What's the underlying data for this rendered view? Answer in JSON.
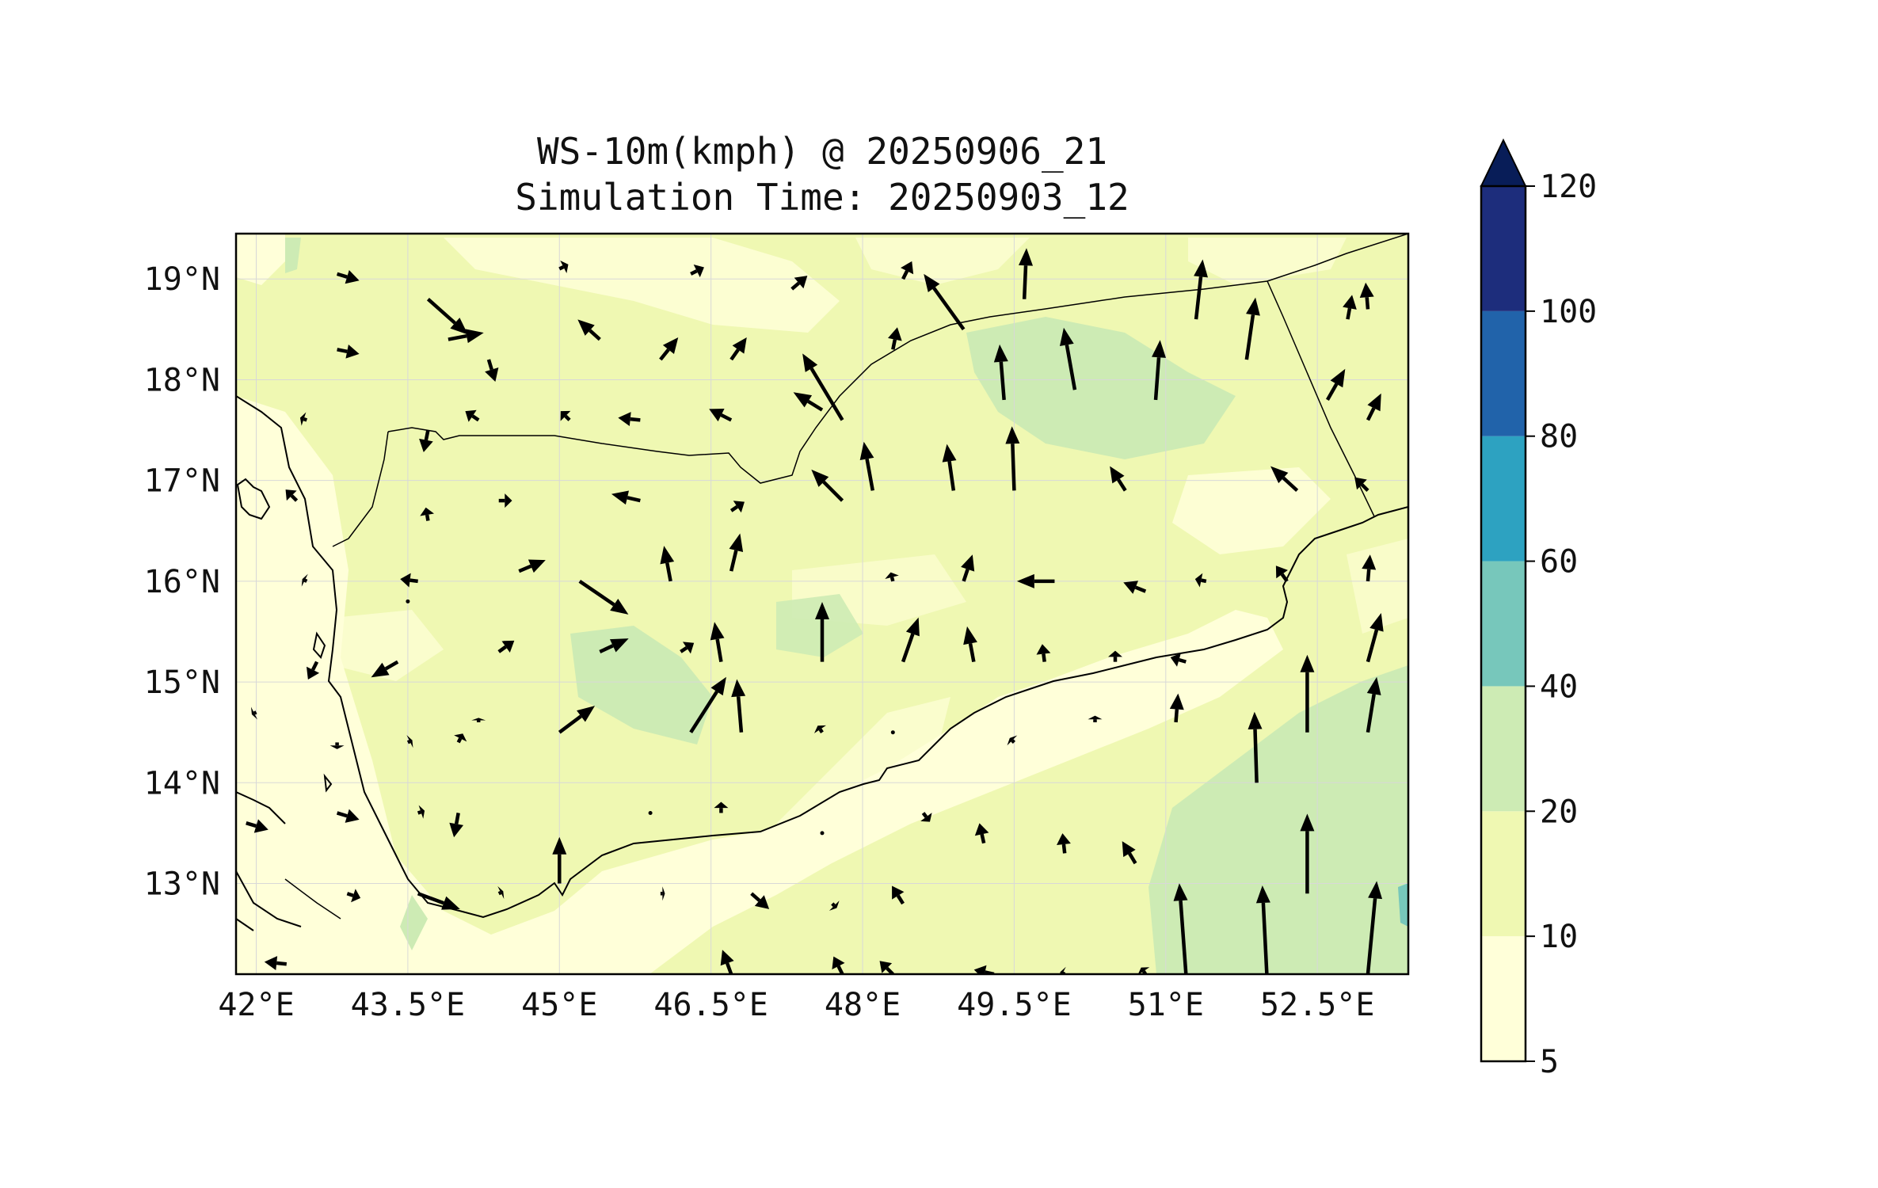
{
  "title": {
    "line1": "WS-10m(kmph) @ 20250906_21",
    "line2": "Simulation Time: 20250903_12"
  },
  "map": {
    "lon_range": [
      41.8,
      53.4
    ],
    "lat_range": [
      12.1,
      19.45
    ],
    "lon_ticks": [
      {
        "value": 42.0,
        "label": "42°E"
      },
      {
        "value": 43.5,
        "label": "43.5°E"
      },
      {
        "value": 45.0,
        "label": "45°E"
      },
      {
        "value": 46.5,
        "label": "46.5°E"
      },
      {
        "value": 48.0,
        "label": "48°E"
      },
      {
        "value": 49.5,
        "label": "49.5°E"
      },
      {
        "value": 51.0,
        "label": "51°E"
      },
      {
        "value": 52.5,
        "label": "52.5°E"
      }
    ],
    "lat_ticks": [
      {
        "value": 19,
        "label": "19°N"
      },
      {
        "value": 18,
        "label": "18°N"
      },
      {
        "value": 17,
        "label": "17°N"
      },
      {
        "value": 16,
        "label": "16°N"
      },
      {
        "value": 15,
        "label": "15°N"
      },
      {
        "value": 14,
        "label": "14°N"
      },
      {
        "value": 13,
        "label": "13°N"
      }
    ],
    "gridlines": true,
    "colors": {
      "border": "#000000",
      "grid": "#d8d8d8",
      "arrow": "#000000"
    }
  },
  "colorbar": {
    "levels": [
      {
        "min": 5,
        "max": 10,
        "color": "#ffffd9"
      },
      {
        "min": 10,
        "max": 20,
        "color": "#eff8b2"
      },
      {
        "min": 20,
        "max": 40,
        "color": "#cdebb4"
      },
      {
        "min": 40,
        "max": 60,
        "color": "#77c7bb"
      },
      {
        "min": 60,
        "max": 80,
        "color": "#2da2c1"
      },
      {
        "min": 80,
        "max": 100,
        "color": "#2163aa"
      },
      {
        "min": 100,
        "max": 120,
        "color": "#1d2d7c"
      }
    ],
    "extend_color": "#081d58",
    "tick_labels": [
      "5",
      "10",
      "20",
      "40",
      "60",
      "80",
      "100",
      "120"
    ]
  },
  "wind_field": {
    "vectors": [
      {
        "lon": 42.8,
        "lat": 19.05,
        "u": 1.0,
        "v": -0.3
      },
      {
        "lon": 43.7,
        "lat": 18.8,
        "u": 1.8,
        "v": -1.6
      },
      {
        "lon": 45.0,
        "lat": 19.1,
        "u": 0.4,
        "v": 0.2
      },
      {
        "lon": 46.3,
        "lat": 19.05,
        "u": 0.6,
        "v": 0.3
      },
      {
        "lon": 47.3,
        "lat": 18.9,
        "u": 0.7,
        "v": 0.6
      },
      {
        "lon": 48.4,
        "lat": 19.0,
        "u": 0.4,
        "v": 0.8
      },
      {
        "lon": 49.0,
        "lat": 18.5,
        "u": -1.8,
        "v": 2.5
      },
      {
        "lon": 49.6,
        "lat": 18.8,
        "u": 0.1,
        "v": 2.3
      },
      {
        "lon": 51.3,
        "lat": 18.6,
        "u": 0.3,
        "v": 2.7
      },
      {
        "lon": 52.8,
        "lat": 18.6,
        "u": 0.2,
        "v": 1.1
      },
      {
        "lon": 53.0,
        "lat": 18.7,
        "u": -0.1,
        "v": 1.2
      },
      {
        "lon": 42.8,
        "lat": 18.3,
        "u": 1.0,
        "v": -0.2
      },
      {
        "lon": 43.9,
        "lat": 18.4,
        "u": 1.6,
        "v": 0.3
      },
      {
        "lon": 44.3,
        "lat": 18.2,
        "u": 0.3,
        "v": -1.0
      },
      {
        "lon": 45.4,
        "lat": 18.4,
        "u": -1.0,
        "v": 0.9
      },
      {
        "lon": 46.0,
        "lat": 18.2,
        "u": 0.8,
        "v": 1.0
      },
      {
        "lon": 46.7,
        "lat": 18.2,
        "u": 0.7,
        "v": 1.0
      },
      {
        "lon": 47.8,
        "lat": 17.6,
        "u": -1.8,
        "v": 3.0
      },
      {
        "lon": 48.3,
        "lat": 18.3,
        "u": 0.2,
        "v": 1.0
      },
      {
        "lon": 49.4,
        "lat": 17.8,
        "u": -0.2,
        "v": 2.5
      },
      {
        "lon": 50.1,
        "lat": 17.9,
        "u": -0.5,
        "v": 2.8
      },
      {
        "lon": 50.9,
        "lat": 17.8,
        "u": 0.2,
        "v": 2.7
      },
      {
        "lon": 51.8,
        "lat": 18.2,
        "u": 0.4,
        "v": 2.8
      },
      {
        "lon": 52.6,
        "lat": 17.8,
        "u": 0.8,
        "v": 1.4
      },
      {
        "lon": 53.0,
        "lat": 17.6,
        "u": 0.6,
        "v": 1.2
      },
      {
        "lon": 42.5,
        "lat": 17.6,
        "u": -0.3,
        "v": 0.1
      },
      {
        "lon": 43.7,
        "lat": 17.5,
        "u": -0.2,
        "v": -1.0
      },
      {
        "lon": 44.2,
        "lat": 17.6,
        "u": -0.6,
        "v": 0.4
      },
      {
        "lon": 45.1,
        "lat": 17.6,
        "u": -0.4,
        "v": 0.4
      },
      {
        "lon": 45.8,
        "lat": 17.6,
        "u": -1.0,
        "v": 0.1
      },
      {
        "lon": 46.7,
        "lat": 17.6,
        "u": -1.0,
        "v": 0.5
      },
      {
        "lon": 47.6,
        "lat": 17.7,
        "u": -1.3,
        "v": 0.8
      },
      {
        "lon": 48.1,
        "lat": 16.9,
        "u": -0.4,
        "v": 2.2
      },
      {
        "lon": 48.9,
        "lat": 16.9,
        "u": -0.3,
        "v": 2.1
      },
      {
        "lon": 49.5,
        "lat": 16.9,
        "u": -0.1,
        "v": 2.9
      },
      {
        "lon": 50.6,
        "lat": 16.9,
        "u": -0.7,
        "v": 1.1
      },
      {
        "lon": 52.3,
        "lat": 16.9,
        "u": -1.2,
        "v": 1.1
      },
      {
        "lon": 53.0,
        "lat": 16.9,
        "u": -0.6,
        "v": 0.6
      },
      {
        "lon": 42.4,
        "lat": 16.8,
        "u": -0.5,
        "v": 0.5
      },
      {
        "lon": 43.7,
        "lat": 16.6,
        "u": -0.1,
        "v": 0.6
      },
      {
        "lon": 44.4,
        "lat": 16.8,
        "u": 0.6,
        "v": 0.0
      },
      {
        "lon": 45.8,
        "lat": 16.8,
        "u": -1.3,
        "v": 0.3
      },
      {
        "lon": 46.7,
        "lat": 16.7,
        "u": 0.6,
        "v": 0.4
      },
      {
        "lon": 47.8,
        "lat": 16.8,
        "u": -1.4,
        "v": 1.4
      },
      {
        "lon": 42.5,
        "lat": 16.0,
        "u": -0.2,
        "v": 0.1
      },
      {
        "lon": 43.6,
        "lat": 16.0,
        "u": -0.8,
        "v": 0.1
      },
      {
        "lon": 44.6,
        "lat": 16.1,
        "u": 1.2,
        "v": 0.5
      },
      {
        "lon": 46.1,
        "lat": 16.0,
        "u": -0.3,
        "v": 1.6
      },
      {
        "lon": 46.7,
        "lat": 16.1,
        "u": 0.4,
        "v": 1.7
      },
      {
        "lon": 47.6,
        "lat": 15.2,
        "u": 0.0,
        "v": 2.7
      },
      {
        "lon": 48.3,
        "lat": 16.0,
        "u": -0.1,
        "v": 0.4
      },
      {
        "lon": 49.0,
        "lat": 16.0,
        "u": 0.4,
        "v": 1.2
      },
      {
        "lon": 49.9,
        "lat": 16.0,
        "u": -1.7,
        "v": 0.0
      },
      {
        "lon": 50.8,
        "lat": 15.9,
        "u": -1.0,
        "v": 0.4
      },
      {
        "lon": 51.4,
        "lat": 16.0,
        "u": -0.5,
        "v": 0.1
      },
      {
        "lon": 52.2,
        "lat": 16.0,
        "u": -0.5,
        "v": 0.7
      },
      {
        "lon": 53.0,
        "lat": 16.0,
        "u": 0.1,
        "v": 1.2
      },
      {
        "lon": 43.5,
        "lat": 15.8,
        "u": 0.0,
        "v": 0.0
      },
      {
        "lon": 45.2,
        "lat": 16.0,
        "u": 2.2,
        "v": -1.5
      },
      {
        "lon": 44.4,
        "lat": 15.3,
        "u": 0.7,
        "v": 0.5
      },
      {
        "lon": 45.4,
        "lat": 15.3,
        "u": 1.3,
        "v": 0.6
      },
      {
        "lon": 46.2,
        "lat": 15.3,
        "u": 0.6,
        "v": 0.4
      },
      {
        "lon": 46.6,
        "lat": 15.2,
        "u": -0.3,
        "v": 1.8
      },
      {
        "lon": 48.4,
        "lat": 15.2,
        "u": 0.7,
        "v": 2.0
      },
      {
        "lon": 49.1,
        "lat": 15.2,
        "u": -0.3,
        "v": 1.6
      },
      {
        "lon": 49.8,
        "lat": 15.2,
        "u": -0.1,
        "v": 0.8
      },
      {
        "lon": 50.5,
        "lat": 15.2,
        "u": 0.0,
        "v": 0.5
      },
      {
        "lon": 51.2,
        "lat": 15.2,
        "u": -0.7,
        "v": 0.2
      },
      {
        "lon": 52.4,
        "lat": 14.5,
        "u": 0.0,
        "v": 3.5
      },
      {
        "lon": 53.0,
        "lat": 15.2,
        "u": 0.6,
        "v": 2.2
      },
      {
        "lon": 42.0,
        "lat": 14.7,
        "u": -0.2,
        "v": -0.1
      },
      {
        "lon": 42.6,
        "lat": 15.2,
        "u": -0.4,
        "v": -0.8
      },
      {
        "lon": 43.4,
        "lat": 15.2,
        "u": -1.2,
        "v": -0.7
      },
      {
        "lon": 44.0,
        "lat": 14.4,
        "u": 0.2,
        "v": 0.4
      },
      {
        "lon": 45.0,
        "lat": 14.5,
        "u": 1.6,
        "v": 1.2
      },
      {
        "lon": 46.3,
        "lat": 14.5,
        "u": 1.6,
        "v": 2.5
      },
      {
        "lon": 46.8,
        "lat": 14.5,
        "u": -0.2,
        "v": 2.4
      },
      {
        "lon": 47.6,
        "lat": 14.5,
        "u": -0.2,
        "v": 0.3
      },
      {
        "lon": 48.3,
        "lat": 14.5,
        "u": -0.1,
        "v": 0.1
      },
      {
        "lon": 49.5,
        "lat": 14.4,
        "u": -0.2,
        "v": 0.2
      },
      {
        "lon": 50.3,
        "lat": 14.6,
        "u": 0.0,
        "v": 0.3
      },
      {
        "lon": 51.1,
        "lat": 14.6,
        "u": 0.1,
        "v": 1.3
      },
      {
        "lon": 51.9,
        "lat": 14.0,
        "u": -0.1,
        "v": 3.2
      },
      {
        "lon": 52.4,
        "lat": 12.9,
        "u": 0.0,
        "v": 3.6
      },
      {
        "lon": 53.0,
        "lat": 14.5,
        "u": 0.4,
        "v": 2.5
      },
      {
        "lon": 42.8,
        "lat": 14.4,
        "u": 0.0,
        "v": -0.3
      },
      {
        "lon": 43.5,
        "lat": 14.4,
        "u": 0.2,
        "v": 0.1
      },
      {
        "lon": 44.2,
        "lat": 14.6,
        "u": 0.0,
        "v": 0.2
      },
      {
        "lon": 45.0,
        "lat": 13.0,
        "u": 0.0,
        "v": 2.1
      },
      {
        "lon": 44.0,
        "lat": 13.7,
        "u": -0.2,
        "v": -1.1
      },
      {
        "lon": 42.8,
        "lat": 13.7,
        "u": 1.0,
        "v": -0.3
      },
      {
        "lon": 41.9,
        "lat": 13.6,
        "u": 1.0,
        "v": -0.3
      },
      {
        "lon": 43.6,
        "lat": 13.7,
        "u": 0.3,
        "v": 0.1
      },
      {
        "lon": 45.9,
        "lat": 13.7,
        "u": 0.0,
        "v": 0.0
      },
      {
        "lon": 46.6,
        "lat": 13.7,
        "u": 0.0,
        "v": 0.5
      },
      {
        "lon": 47.6,
        "lat": 13.5,
        "u": 0.0,
        "v": 0.0
      },
      {
        "lon": 48.6,
        "lat": 13.7,
        "u": 0.3,
        "v": -0.4
      },
      {
        "lon": 49.2,
        "lat": 13.4,
        "u": -0.2,
        "v": 0.9
      },
      {
        "lon": 50.0,
        "lat": 13.3,
        "u": -0.1,
        "v": 0.9
      },
      {
        "lon": 50.7,
        "lat": 13.2,
        "u": -0.6,
        "v": 1.0
      },
      {
        "lon": 51.2,
        "lat": 12.1,
        "u": -0.3,
        "v": 4.1
      },
      {
        "lon": 52.0,
        "lat": 12.1,
        "u": -0.2,
        "v": 4.0
      },
      {
        "lon": 53.0,
        "lat": 12.1,
        "u": 0.4,
        "v": 4.2
      },
      {
        "lon": 42.9,
        "lat": 12.9,
        "u": 0.6,
        "v": -0.2
      },
      {
        "lon": 43.6,
        "lat": 12.9,
        "u": 1.9,
        "v": -0.7
      },
      {
        "lon": 44.4,
        "lat": 12.9,
        "u": 0.2,
        "v": 0.1
      },
      {
        "lon": 46.0,
        "lat": 12.9,
        "u": 0.2,
        "v": 0.0
      },
      {
        "lon": 46.9,
        "lat": 12.9,
        "u": 0.8,
        "v": -0.7
      },
      {
        "lon": 47.7,
        "lat": 12.8,
        "u": 0.2,
        "v": -0.2
      },
      {
        "lon": 48.4,
        "lat": 12.8,
        "u": -0.5,
        "v": 0.8
      },
      {
        "lon": 42.3,
        "lat": 12.2,
        "u": -1.0,
        "v": 0.1
      },
      {
        "lon": 46.7,
        "lat": 12.1,
        "u": -0.4,
        "v": 1.1
      },
      {
        "lon": 47.8,
        "lat": 12.1,
        "u": -0.4,
        "v": 0.8
      },
      {
        "lon": 48.3,
        "lat": 12.1,
        "u": -0.6,
        "v": 0.6
      },
      {
        "lon": 49.3,
        "lat": 12.1,
        "u": -0.9,
        "v": 0.2
      },
      {
        "lon": 50.0,
        "lat": 12.1,
        "u": -0.2,
        "v": 0.1
      },
      {
        "lon": 50.8,
        "lat": 12.1,
        "u": -0.2,
        "v": 0.3
      }
    ]
  }
}
